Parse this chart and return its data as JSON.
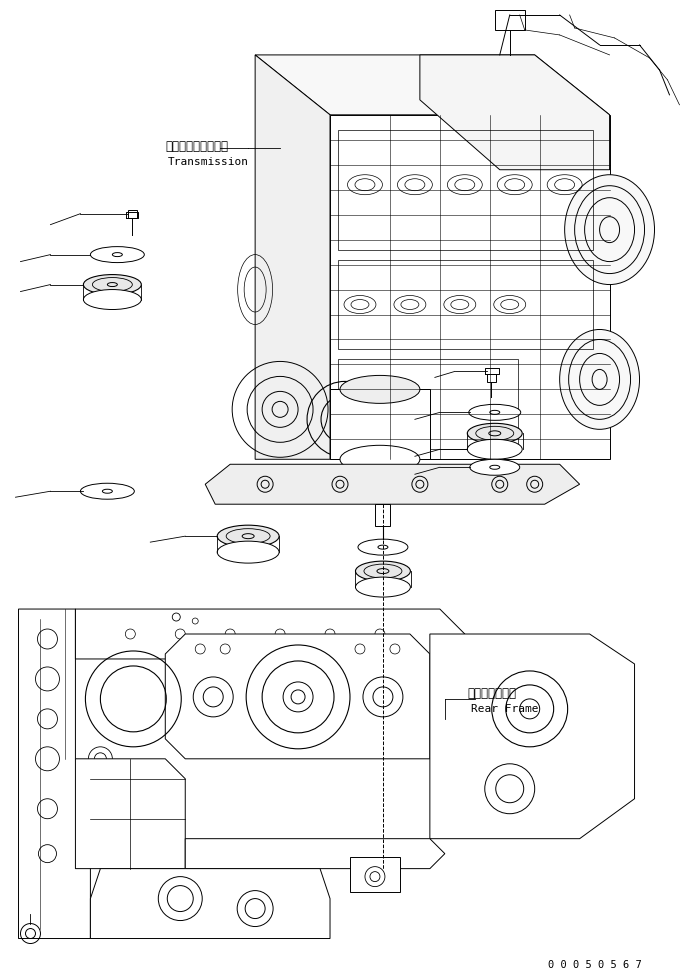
{
  "background_color": "#ffffff",
  "line_color": "#000000",
  "label_transmission_jp": "トランスミッション",
  "label_transmission_en": "Transmission",
  "label_rearframe_jp": "リヤーフレーム",
  "label_rearframe_en": "Rear Frame",
  "part_number": "0 0 0 5 0 5 6 7",
  "figsize": [
    6.86,
    9.73
  ],
  "dpi": 100
}
